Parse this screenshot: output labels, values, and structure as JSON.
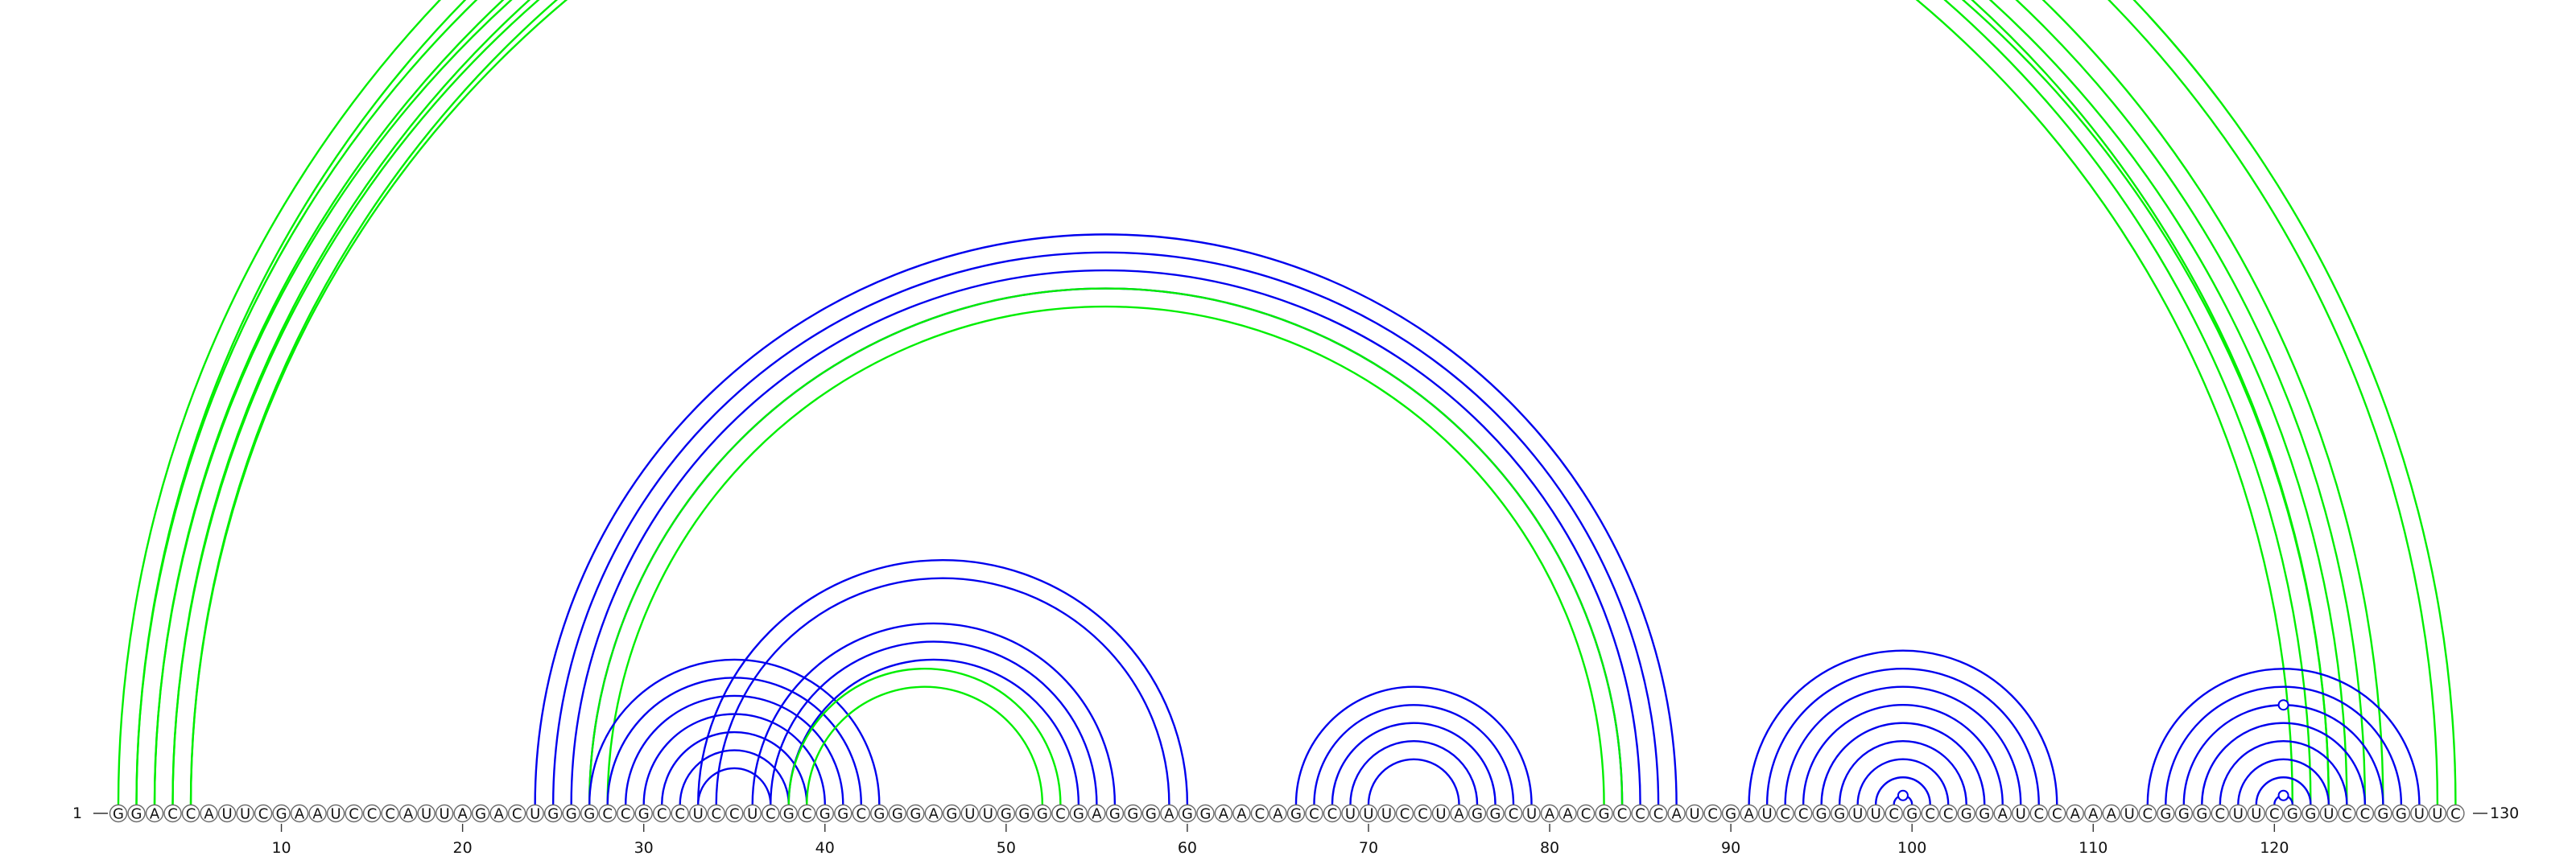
{
  "diagram": {
    "sequence": "GGACCAUUCGAAUCCCAUUAGACUGGGCCGCCUCCUCGCGGCGGGAGUUGGGCGAGGGAGGAACAGCCUUUCCUAGGCUAACGCCCAUCGAUCCGGUUCGCCGGAUCCAAAUCGGGCUUCGGUCCGGUUC",
    "start_label": "1",
    "end_label": "130",
    "tick_labels": [
      "10",
      "20",
      "30",
      "40",
      "50",
      "60",
      "70",
      "80",
      "90",
      "100",
      "110",
      "120"
    ],
    "colors": {
      "green": "#00ee00",
      "blue": "#0000ee"
    },
    "arcs": [
      {
        "color": "green",
        "pairs": [
          [
            1,
            130
          ],
          [
            2,
            129
          ]
        ],
        "marker": true
      },
      {
        "color": "green",
        "pairs": [
          [
            2,
            126
          ],
          [
            3,
            125
          ],
          [
            4,
            124
          ],
          [
            5,
            123
          ]
        ]
      },
      {
        "color": "green",
        "pairs": [
          [
            3,
            123
          ],
          [
            4,
            122
          ],
          [
            5,
            121
          ]
        ]
      },
      {
        "color": "blue",
        "pairs": [
          [
            24,
            87
          ],
          [
            25,
            86
          ],
          [
            26,
            85
          ],
          [
            27,
            84
          ]
        ]
      },
      {
        "color": "green",
        "pairs": [
          [
            27,
            84
          ],
          [
            28,
            83
          ]
        ]
      },
      {
        "color": "blue",
        "pairs": [
          [
            27,
            43
          ],
          [
            28,
            42
          ],
          [
            29,
            41
          ],
          [
            30,
            40
          ],
          [
            31,
            39
          ]
        ]
      },
      {
        "color": "blue",
        "pairs": [
          [
            32,
            38
          ],
          [
            33,
            37
          ]
        ]
      },
      {
        "color": "blue",
        "pairs": [
          [
            33,
            60
          ],
          [
            34,
            59
          ]
        ]
      },
      {
        "color": "blue",
        "pairs": [
          [
            36,
            56
          ],
          [
            37,
            55
          ],
          [
            38,
            54
          ]
        ]
      },
      {
        "color": "green",
        "pairs": [
          [
            38,
            53
          ],
          [
            39,
            52
          ]
        ]
      },
      {
        "color": "blue",
        "pairs": [
          [
            66,
            79
          ],
          [
            67,
            78
          ],
          [
            68,
            77
          ]
        ]
      },
      {
        "color": "blue",
        "pairs": [
          [
            69,
            76
          ],
          [
            70,
            75
          ]
        ]
      },
      {
        "color": "blue",
        "pairs": [
          [
            91,
            108
          ],
          [
            92,
            107
          ],
          [
            93,
            106
          ]
        ]
      },
      {
        "color": "blue",
        "pairs": [
          [
            94,
            105
          ],
          [
            95,
            104
          ],
          [
            96,
            103
          ]
        ]
      },
      {
        "color": "blue",
        "pairs": [
          [
            97,
            102
          ],
          [
            98,
            101
          ]
        ]
      },
      {
        "color": "blue",
        "pairs": [
          [
            99,
            100
          ]
        ],
        "marker": true
      },
      {
        "color": "blue",
        "pairs": [
          [
            113,
            128
          ],
          [
            114,
            127
          ]
        ]
      },
      {
        "color": "blue",
        "pairs": [
          [
            115,
            126
          ],
          [
            116,
            125
          ]
        ],
        "marker": true
      },
      {
        "color": "blue",
        "pairs": [
          [
            117,
            124
          ],
          [
            118,
            123
          ],
          [
            119,
            122
          ]
        ]
      },
      {
        "color": "blue",
        "pairs": [
          [
            120,
            121
          ]
        ],
        "marker": true
      }
    ]
  }
}
